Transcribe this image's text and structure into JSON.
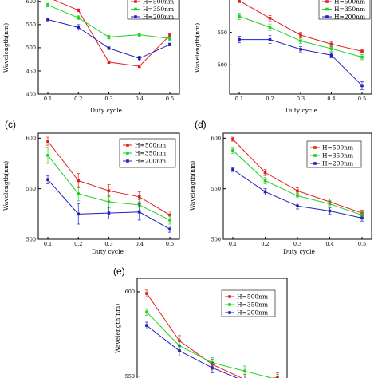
{
  "chart_data": [
    {
      "type": "line",
      "panel_label": "",
      "xlabel": "Duty cycle",
      "ylabel": "Wavelength(nm)",
      "x": [
        0.1,
        0.2,
        0.3,
        0.4,
        0.5
      ],
      "x_tick_labels": [
        "0.1",
        "0.2",
        "0.3",
        "0.4",
        "0.5"
      ],
      "y_ticks": [
        400,
        450,
        500,
        550,
        600
      ],
      "y_tick_labels": [
        "400",
        "450",
        "500",
        "550",
        "600"
      ],
      "ylim": [
        400,
        610
      ],
      "grid": false,
      "legend_position": "top-right",
      "series": [
        {
          "name": "H=500nm",
          "color": "#e02020",
          "values": [
            609,
            581,
            469,
            460,
            527
          ],
          "errors": [
            3,
            3,
            3,
            3,
            3
          ]
        },
        {
          "name": "H=350nm",
          "color": "#20d020",
          "values": [
            592,
            565,
            523,
            528,
            520
          ],
          "errors": [
            4,
            4,
            4,
            4,
            4
          ]
        },
        {
          "name": "H=200nm",
          "color": "#2020c0",
          "values": [
            561,
            544,
            499,
            477,
            507
          ],
          "errors": [
            3,
            6,
            3,
            5,
            3
          ]
        }
      ]
    },
    {
      "type": "line",
      "panel_label": "",
      "xlabel": "Duty cycle",
      "ylabel": "Wavelength(nm)",
      "x": [
        0.1,
        0.2,
        0.3,
        0.4,
        0.5
      ],
      "x_tick_labels": [
        "0.1",
        "0.2",
        "0.3",
        "0.4",
        "0.5"
      ],
      "y_ticks": [
        500,
        550
      ],
      "y_tick_labels": [
        "500",
        "550"
      ],
      "ylim": [
        455,
        605
      ],
      "grid": false,
      "legend_position": "top-right",
      "series": [
        {
          "name": "H=500nm",
          "color": "#e02020",
          "values": [
            599,
            572,
            546,
            532,
            521
          ],
          "errors": [
            3,
            4,
            4,
            4,
            3
          ]
        },
        {
          "name": "H=350nm",
          "color": "#20d020",
          "values": [
            575,
            558,
            537,
            525,
            512
          ],
          "errors": [
            5,
            5,
            4,
            4,
            4
          ]
        },
        {
          "name": "H=200nm",
          "color": "#2020c0",
          "values": [
            539,
            539,
            524,
            515,
            468
          ],
          "errors": [
            5,
            6,
            4,
            4,
            6
          ]
        }
      ]
    },
    {
      "type": "line",
      "panel_label": "(c)",
      "xlabel": "Duty cycle",
      "ylabel": "Wavelength(nm)",
      "x": [
        0.1,
        0.2,
        0.3,
        0.4,
        0.5
      ],
      "x_tick_labels": [
        "0.1",
        "0.2",
        "0.3",
        "0.4",
        "0.5"
      ],
      "y_ticks": [
        500,
        550,
        600
      ],
      "y_tick_labels": [
        "500",
        "550",
        "600"
      ],
      "ylim": [
        500,
        605
      ],
      "grid": false,
      "legend_position": "top-right",
      "series": [
        {
          "name": "H=500nm",
          "color": "#e02020",
          "values": [
            597,
            558,
            548,
            542,
            524
          ],
          "errors": [
            4,
            7,
            6,
            5,
            4
          ]
        },
        {
          "name": "H=350nm",
          "color": "#20d020",
          "values": [
            583,
            545,
            537,
            534,
            519
          ],
          "errors": [
            8,
            7,
            6,
            5,
            4
          ]
        },
        {
          "name": "H=200nm",
          "color": "#2020c0",
          "values": [
            559,
            525,
            526,
            527,
            510
          ],
          "errors": [
            4,
            10,
            6,
            8,
            3
          ]
        }
      ]
    },
    {
      "type": "line",
      "panel_label": "(d)",
      "xlabel": "Duty cycle",
      "ylabel": "Wavelength(nm)",
      "x": [
        0.1,
        0.2,
        0.3,
        0.4,
        0.5
      ],
      "x_tick_labels": [
        "0.1",
        "0.2",
        "0.3",
        "0.4",
        "0.5"
      ],
      "y_ticks": [
        500,
        550,
        600
      ],
      "y_tick_labels": [
        "500",
        "550",
        "600"
      ],
      "ylim": [
        500,
        605
      ],
      "grid": false,
      "legend_position": "top-right",
      "series": [
        {
          "name": "H=500nm",
          "color": "#e02020",
          "values": [
            599,
            566,
            548,
            537,
            526
          ],
          "errors": [
            2,
            3,
            3,
            3,
            3
          ]
        },
        {
          "name": "H=350nm",
          "color": "#20d020",
          "values": [
            588,
            558,
            543,
            535,
            524
          ],
          "errors": [
            3,
            3,
            3,
            3,
            3
          ]
        },
        {
          "name": "H=200nm",
          "color": "#2020c0",
          "values": [
            569,
            547,
            533,
            528,
            521
          ],
          "errors": [
            2,
            3,
            3,
            3,
            3
          ]
        }
      ]
    },
    {
      "type": "line",
      "panel_label": "(e)",
      "xlabel": "",
      "ylabel": "Wavelength(nm)",
      "x": [
        0.1,
        0.2,
        0.3,
        0.4,
        0.5
      ],
      "x_tick_labels": [],
      "y_ticks": [
        550,
        600
      ],
      "y_tick_labels": [
        "550",
        "600"
      ],
      "ylim": [
        547,
        608
      ],
      "grid": false,
      "legend_position": "top-right",
      "series": [
        {
          "name": "H=500nm",
          "color": "#e02020",
          "values": [
            599,
            571,
            557,
            548,
            549
          ],
          "errors": [
            2,
            3,
            3,
            3,
            3
          ]
        },
        {
          "name": "H=350nm",
          "color": "#20d020",
          "values": [
            588,
            568,
            558,
            553,
            548
          ],
          "errors": [
            2,
            3,
            3,
            3,
            3
          ]
        },
        {
          "name": "H=200nm",
          "color": "#2020c0",
          "values": [
            580,
            565,
            555,
            547,
            547
          ],
          "errors": [
            2,
            3,
            3,
            3,
            3
          ]
        }
      ]
    }
  ]
}
